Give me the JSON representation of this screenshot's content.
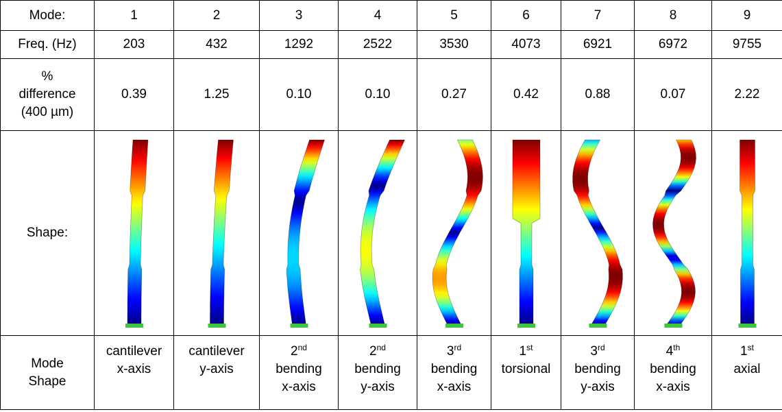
{
  "table": {
    "row_labels": {
      "mode": "Mode:",
      "freq": "Freq. (Hz)",
      "difference": [
        "%",
        "difference",
        "(400 µm)"
      ],
      "shape": "Shape:",
      "mode_shape": [
        "Mode",
        "Shape"
      ]
    },
    "modes": [
      {
        "mode": "1",
        "freq": "203",
        "difference": "0.39",
        "shape_name": {
          "lines": [
            "cantilever",
            "x-axis"
          ]
        }
      },
      {
        "mode": "2",
        "freq": "432",
        "difference": "1.25",
        "shape_name": {
          "lines": [
            "cantilever",
            "y-axis"
          ]
        }
      },
      {
        "mode": "3",
        "freq": "1292",
        "difference": "0.10",
        "shape_name": {
          "number": "2",
          "suffix": "nd",
          "lines": [
            "bending",
            "x-axis"
          ]
        }
      },
      {
        "mode": "4",
        "freq": "2522",
        "difference": "0.10",
        "shape_name": {
          "number": "2",
          "suffix": "nd",
          "lines": [
            "bending",
            "y-axis"
          ]
        }
      },
      {
        "mode": "5",
        "freq": "3530",
        "difference": "0.27",
        "shape_name": {
          "number": "3",
          "suffix": "rd",
          "lines": [
            "bending",
            "x-axis"
          ]
        }
      },
      {
        "mode": "6",
        "freq": "4073",
        "difference": "0.42",
        "shape_name": {
          "number": "1",
          "suffix": "st",
          "lines": [
            "torsional"
          ]
        }
      },
      {
        "mode": "7",
        "freq": "6921",
        "difference": "0.88",
        "shape_name": {
          "number": "3",
          "suffix": "rd",
          "lines": [
            "bending",
            "y-axis"
          ]
        }
      },
      {
        "mode": "8",
        "freq": "6972",
        "difference": "0.07",
        "shape_name": {
          "number": "4",
          "suffix": "th",
          "lines": [
            "bending",
            "x-axis"
          ]
        }
      },
      {
        "mode": "9",
        "freq": "9755",
        "difference": "2.22",
        "shape_name": {
          "number": "1",
          "suffix": "st",
          "lines": [
            "axial"
          ]
        }
      }
    ]
  }
}
